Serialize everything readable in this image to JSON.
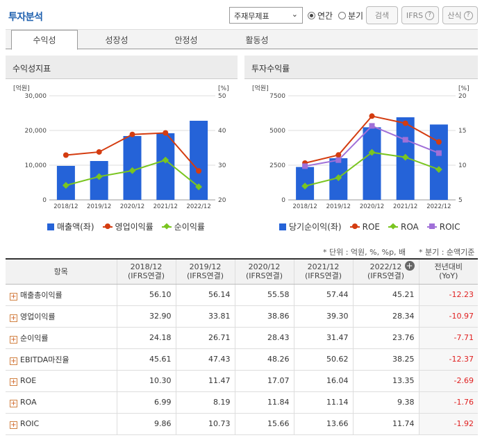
{
  "header": {
    "title": "투자분석",
    "select_value": "주재무제표",
    "radio_annual": "연간",
    "radio_quarter": "분기",
    "search_button": "검색",
    "ifrs_button": "IFRS",
    "formula_button": "산식"
  },
  "tabs": [
    "수익성",
    "성장성",
    "안정성",
    "활동성"
  ],
  "panels": {
    "left_title": "수익성지표",
    "right_title": "투자수익률"
  },
  "chart_data": [
    {
      "type": "bar",
      "title": "수익성지표",
      "categories": [
        "2018/12",
        "2019/12",
        "2020/12",
        "2021/12",
        "2022/12"
      ],
      "left_unit": "[억원]",
      "right_unit": "[%]",
      "left_ticks": [
        "30,000",
        "20,000",
        "10,000",
        "0"
      ],
      "right_ticks": [
        "50",
        "40",
        "30",
        "20"
      ],
      "ylim_left": [
        0,
        30000
      ],
      "ylim_right": [
        20,
        50
      ],
      "series": [
        {
          "name": "매출액(좌)",
          "kind": "bar",
          "axis": "left",
          "color": "#2563d8",
          "values": [
            9800,
            11200,
            18400,
            19200,
            22800
          ]
        },
        {
          "name": "영업이익률",
          "kind": "line",
          "axis": "right",
          "color": "#d43c10",
          "values": [
            32.9,
            33.81,
            38.86,
            39.3,
            28.34
          ]
        },
        {
          "name": "순이익률",
          "kind": "line",
          "axis": "right",
          "color": "#7ac520",
          "values": [
            24.18,
            26.71,
            28.43,
            31.47,
            23.76
          ]
        }
      ]
    },
    {
      "type": "bar",
      "title": "투자수익률",
      "categories": [
        "2018/12",
        "2019/12",
        "2020/12",
        "2021/12",
        "2022/12"
      ],
      "left_unit": "[억원]",
      "right_unit": "[%]",
      "left_ticks": [
        "7500",
        "5000",
        "2500",
        "0"
      ],
      "right_ticks": [
        "20",
        "15",
        "10",
        "5"
      ],
      "ylim_left": [
        0,
        7500
      ],
      "ylim_right": [
        5,
        20
      ],
      "series": [
        {
          "name": "당기순이익(좌)",
          "kind": "bar",
          "axis": "left",
          "color": "#2563d8",
          "values": [
            2370,
            3000,
            5230,
            5950,
            5430
          ]
        },
        {
          "name": "ROE",
          "kind": "line",
          "axis": "right",
          "color": "#d43c10",
          "values": [
            10.3,
            11.47,
            17.07,
            16.04,
            13.35
          ]
        },
        {
          "name": "ROA",
          "kind": "line",
          "axis": "right",
          "color": "#7ac520",
          "values": [
            6.99,
            8.19,
            11.84,
            11.14,
            9.38
          ]
        },
        {
          "name": "ROIC",
          "kind": "line",
          "axis": "right",
          "color": "#a070d8",
          "marker": "square",
          "values": [
            9.86,
            10.73,
            15.66,
            13.66,
            11.74
          ]
        }
      ]
    }
  ],
  "notes": {
    "unit": "* 단위 : 억원, %, %p, 배",
    "quarter": "* 분기 : 순액기준"
  },
  "table": {
    "headers": [
      "항목",
      "2018/12\n(IFRS연결)",
      "2019/12\n(IFRS연결)",
      "2020/12\n(IFRS연결)",
      "2021/12\n(IFRS연결)",
      "2022/12\n(IFRS연결)",
      "전년대비\n(YoY)"
    ],
    "rows": [
      {
        "label": "매출총이익률",
        "values": [
          "56.10",
          "56.14",
          "55.58",
          "57.44",
          "45.21"
        ],
        "yoy": "-12.23"
      },
      {
        "label": "영업이익률",
        "values": [
          "32.90",
          "33.81",
          "38.86",
          "39.30",
          "28.34"
        ],
        "yoy": "-10.97"
      },
      {
        "label": "순이익률",
        "values": [
          "24.18",
          "26.71",
          "28.43",
          "31.47",
          "23.76"
        ],
        "yoy": "-7.71"
      },
      {
        "label": "EBITDA마진율",
        "values": [
          "45.61",
          "47.43",
          "48.26",
          "50.62",
          "38.25"
        ],
        "yoy": "-12.37"
      },
      {
        "label": "ROE",
        "values": [
          "10.30",
          "11.47",
          "17.07",
          "16.04",
          "13.35"
        ],
        "yoy": "-2.69"
      },
      {
        "label": "ROA",
        "values": [
          "6.99",
          "8.19",
          "11.84",
          "11.14",
          "9.38"
        ],
        "yoy": "-1.76"
      },
      {
        "label": "ROIC",
        "values": [
          "9.86",
          "10.73",
          "15.66",
          "13.66",
          "11.74"
        ],
        "yoy": "-1.92"
      }
    ]
  }
}
